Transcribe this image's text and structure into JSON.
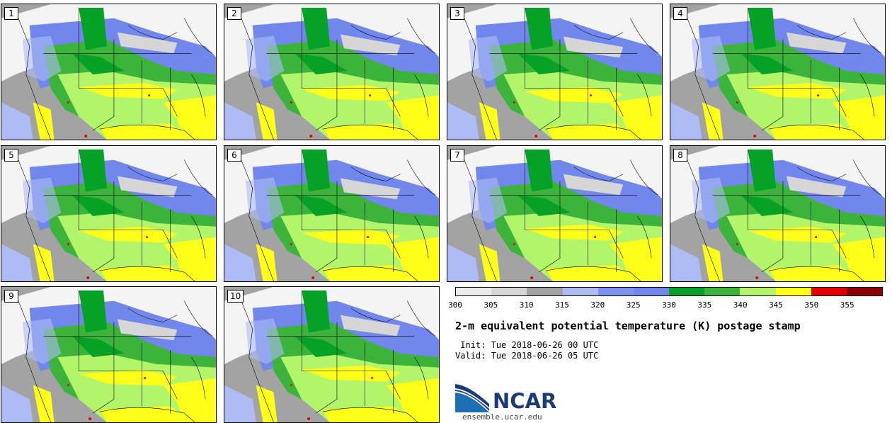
{
  "title": "2-m equivalent potential temperature (K) postage stamp",
  "init": " Init: Tue 2018-06-26 00 UTC",
  "valid": "Valid: Tue 2018-06-26 05 UTC",
  "logo_text": "NCAR",
  "site": "ensemble.ucar.edu",
  "panels": [
    "1",
    "2",
    "3",
    "4",
    "5",
    "6",
    "7",
    "8",
    "9",
    "10"
  ],
  "colorbar": {
    "colors": [
      "#ececec",
      "#d6d6d6",
      "#a3a3a3",
      "#aebcf5",
      "#7c94ee",
      "#7287ec",
      "#06a127",
      "#3cb43c",
      "#b3f56a",
      "#ffff1a",
      "#e00000",
      "#8c0000"
    ],
    "ticks": [
      "300",
      "305",
      "310",
      "315",
      "320",
      "325",
      "330",
      "335",
      "340",
      "345",
      "350",
      "355"
    ]
  }
}
